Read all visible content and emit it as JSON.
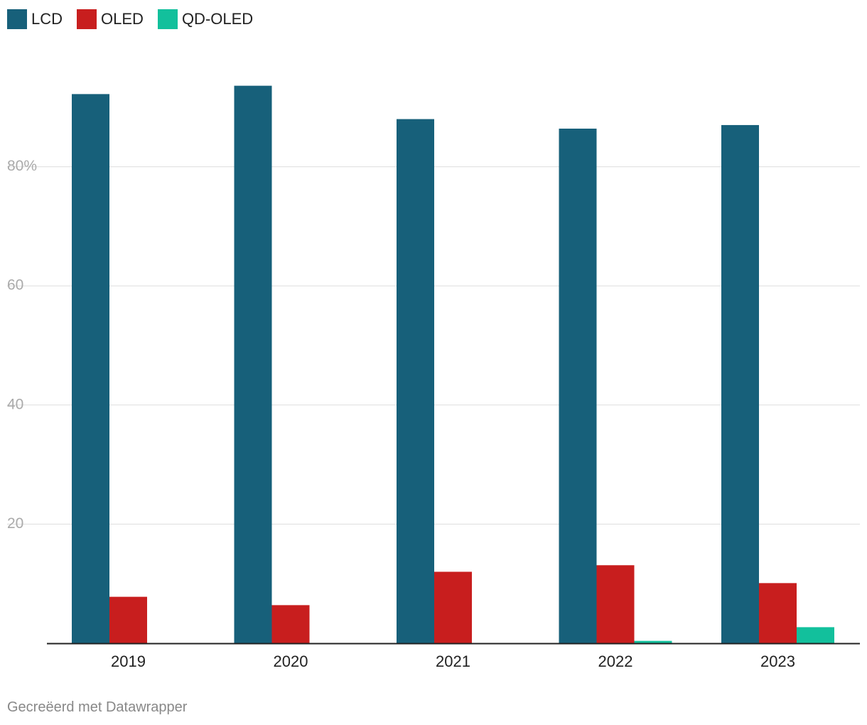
{
  "colors": {
    "LCD": "#17607a",
    "OLED": "#c81e1e",
    "QD-OLED": "#12c09c",
    "grid": "#dddddd",
    "axis": "#222222",
    "ticks": "#aaaaaa"
  },
  "legend": [
    {
      "name": "LCD",
      "color": "#17607a"
    },
    {
      "name": "OLED",
      "color": "#c81e1e"
    },
    {
      "name": "QD-OLED",
      "color": "#12c09c"
    }
  ],
  "chart_data": {
    "type": "bar",
    "categories": [
      "2019",
      "2020",
      "2021",
      "2022",
      "2023"
    ],
    "series": [
      {
        "name": "LCD",
        "values": [
          92.2,
          93.6,
          88.0,
          86.4,
          87.0
        ]
      },
      {
        "name": "OLED",
        "values": [
          7.8,
          6.4,
          12.0,
          13.1,
          10.1
        ]
      },
      {
        "name": "QD-OLED",
        "values": [
          0,
          0,
          0,
          0.4,
          2.7
        ]
      }
    ],
    "yticks": [
      {
        "value": 20,
        "label": "20"
      },
      {
        "value": 40,
        "label": "40"
      },
      {
        "value": 60,
        "label": "60"
      },
      {
        "value": 80,
        "label": "80%"
      }
    ],
    "ylim": [
      0,
      100
    ],
    "title": "",
    "xlabel": "",
    "ylabel": "",
    "grid": true,
    "legend_position": "top-left"
  },
  "footer": {
    "credit": "Gecreëerd met Datawrapper"
  }
}
